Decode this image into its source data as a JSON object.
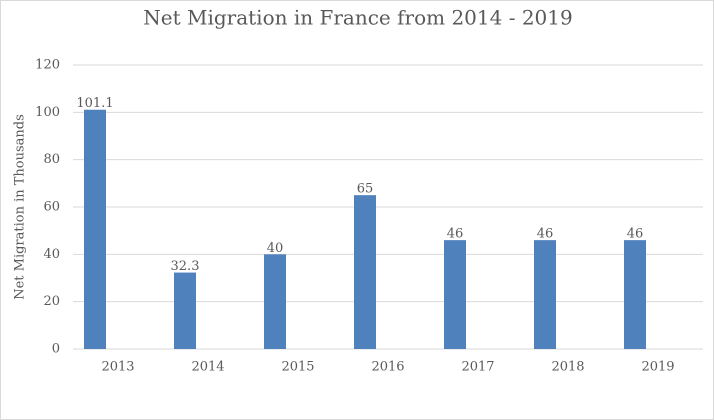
{
  "chart_data": {
    "type": "bar",
    "title": "Net Migration in France from 2014 - 2019",
    "y_label": "Net Migration in Thousands",
    "categories": [
      "2013",
      "2014",
      "2015",
      "2016",
      "2017",
      "2018",
      "2019"
    ],
    "values": [
      101.1,
      32.3,
      40,
      65,
      46,
      46,
      46
    ],
    "color": "#4f81bd",
    "ylim": [
      0,
      120
    ],
    "yticks": [
      0,
      20,
      40,
      60,
      80,
      100,
      120
    ],
    "grid": true
  }
}
